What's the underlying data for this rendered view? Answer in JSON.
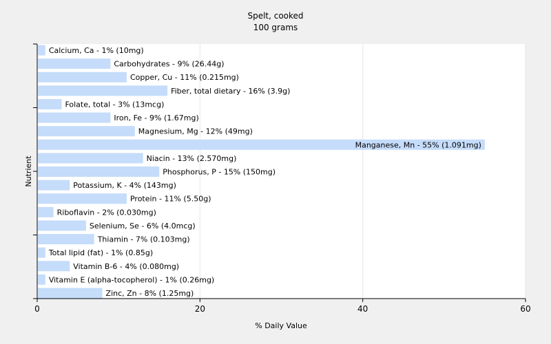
{
  "chart_data": {
    "type": "bar",
    "orientation": "horizontal",
    "title": "Spelt, cooked",
    "subtitle": "100 grams",
    "xlabel": "% Daily Value",
    "ylabel": "Nutrient",
    "xlim": [
      0,
      60
    ],
    "xticks": [
      0,
      20,
      40,
      60
    ],
    "grid": true,
    "bar_color": "#c5dcfa",
    "categories": [
      "Calcium, Ca - 1% (10mg)",
      "Carbohydrates - 9% (26.44g)",
      "Copper, Cu - 11% (0.215mg)",
      "Fiber, total dietary - 16% (3.9g)",
      "Folate, total - 3% (13mcg)",
      "Iron, Fe - 9% (1.67mg)",
      "Magnesium, Mg - 12% (49mg)",
      "Manganese, Mn - 55% (1.091mg)",
      "Niacin - 13% (2.570mg)",
      "Phosphorus, P - 15% (150mg)",
      "Potassium, K - 4% (143mg)",
      "Protein - 11% (5.50g)",
      "Riboflavin - 2% (0.030mg)",
      "Selenium, Se - 6% (4.0mcg)",
      "Thiamin - 7% (0.103mg)",
      "Total lipid (fat) - 1% (0.85g)",
      "Vitamin B-6 - 4% (0.080mg)",
      "Vitamin E (alpha-tocopherol) - 1% (0.26mg)",
      "Zinc, Zn - 8% (1.25mg)"
    ],
    "values": [
      1,
      9,
      11,
      16,
      3,
      9,
      12,
      55,
      13,
      15,
      4,
      11,
      2,
      6,
      7,
      1,
      4,
      1,
      8
    ]
  }
}
